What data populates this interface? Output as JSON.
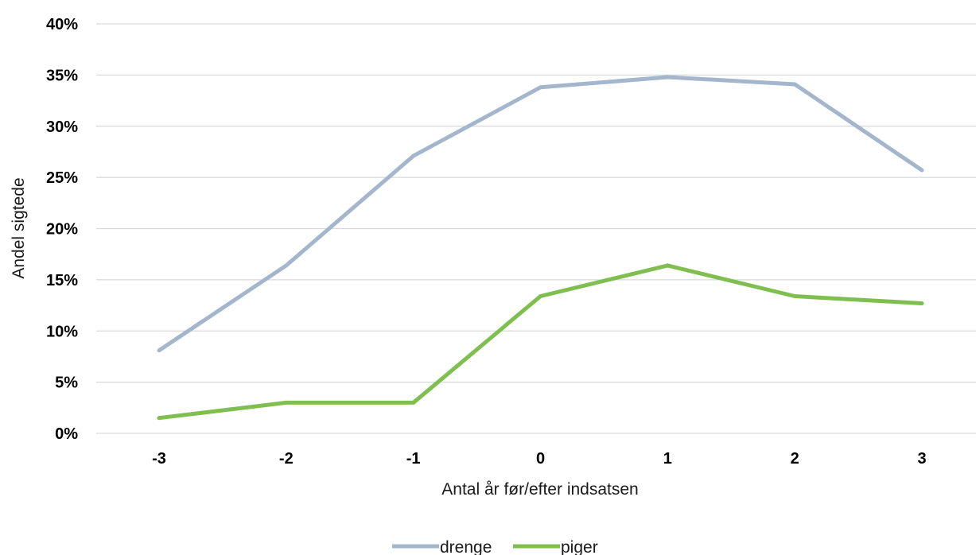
{
  "chart_data": {
    "type": "line",
    "title": "",
    "xlabel": "Antal år før/efter indsatsen",
    "ylabel": "Andel sigtede",
    "categories": [
      "-3",
      "-2",
      "-1",
      "0",
      "1",
      "2",
      "3"
    ],
    "ylim": [
      0,
      40
    ],
    "yticks": [
      "0%",
      "5%",
      "10%",
      "15%",
      "20%",
      "25%",
      "30%",
      "35%",
      "40%"
    ],
    "grid": true,
    "legend_position": "bottom",
    "series": [
      {
        "name": "drenge",
        "color": "#a3b6cc",
        "values": [
          8.1,
          16.4,
          27.1,
          33.8,
          34.8,
          34.1,
          25.7
        ]
      },
      {
        "name": "piger",
        "color": "#7fbf4f",
        "values": [
          1.5,
          3.0,
          3.0,
          13.4,
          16.4,
          13.4,
          12.7
        ]
      }
    ]
  }
}
